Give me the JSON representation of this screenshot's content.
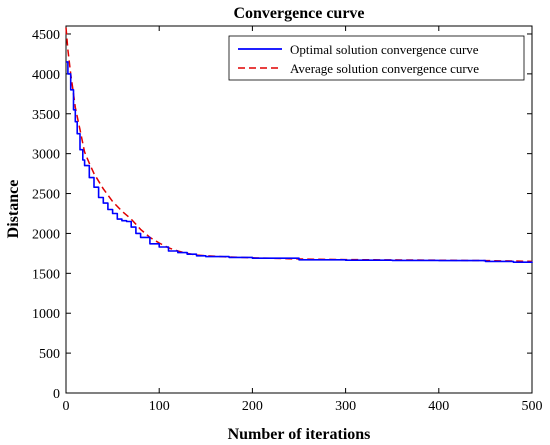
{
  "chart_data": {
    "type": "line",
    "title": "Convergence curve",
    "xlabel": "Number of iterations",
    "ylabel": "Distance",
    "xlim": [
      0,
      500
    ],
    "ylim": [
      0,
      4600
    ],
    "xticks": [
      0,
      100,
      200,
      300,
      400,
      500
    ],
    "yticks": [
      0,
      500,
      1000,
      1500,
      2000,
      2500,
      3000,
      3500,
      4000,
      4500
    ],
    "grid": false,
    "legend_position": "top-right",
    "series": [
      {
        "name": "Optimal solution convergence curve",
        "color": "#0000ff",
        "style": "solid",
        "x": [
          0,
          2,
          5,
          8,
          10,
          12,
          15,
          18,
          20,
          25,
          30,
          35,
          40,
          45,
          50,
          55,
          60,
          65,
          70,
          75,
          80,
          90,
          100,
          110,
          120,
          130,
          140,
          150,
          175,
          200,
          250,
          300,
          350,
          400,
          450,
          480,
          500
        ],
        "y": [
          4150,
          4000,
          3800,
          3550,
          3400,
          3250,
          3050,
          2920,
          2850,
          2700,
          2580,
          2450,
          2380,
          2300,
          2250,
          2180,
          2160,
          2150,
          2080,
          2000,
          1950,
          1870,
          1830,
          1780,
          1760,
          1740,
          1720,
          1710,
          1700,
          1690,
          1670,
          1665,
          1662,
          1660,
          1650,
          1640,
          1630
        ]
      },
      {
        "name": "Average solution convergence curve",
        "color": "#e00000",
        "style": "dashed",
        "x": [
          0,
          2,
          5,
          8,
          10,
          15,
          20,
          25,
          30,
          40,
          50,
          60,
          70,
          80,
          90,
          100,
          110,
          120,
          130,
          140,
          150,
          175,
          200,
          250,
          300,
          350,
          400,
          450,
          480,
          500
        ],
        "y": [
          4580,
          4300,
          4000,
          3750,
          3580,
          3300,
          3020,
          2880,
          2750,
          2560,
          2400,
          2280,
          2180,
          2050,
          1950,
          1880,
          1820,
          1780,
          1750,
          1730,
          1720,
          1705,
          1695,
          1680,
          1672,
          1668,
          1665,
          1660,
          1655,
          1650
        ]
      }
    ]
  }
}
